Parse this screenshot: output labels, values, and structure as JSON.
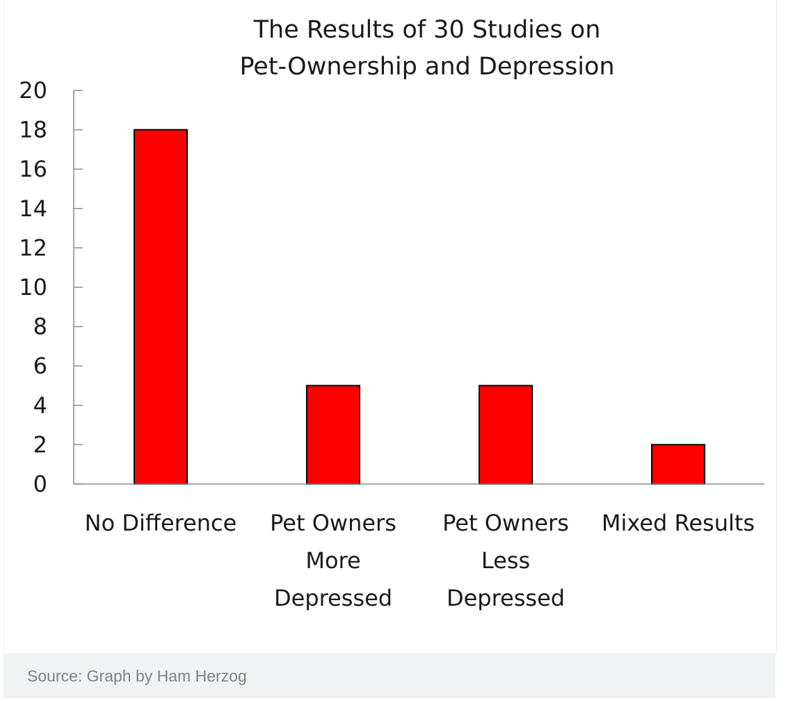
{
  "chart_data": {
    "type": "bar",
    "title": [
      "The Results of 30 Studies on",
      "Pet-Ownership and Depression"
    ],
    "categories": [
      [
        "No Difference"
      ],
      [
        "Pet Owners",
        "More",
        "Depressed"
      ],
      [
        "Pet Owners",
        "Less",
        "Depressed"
      ],
      [
        "Mixed Results"
      ]
    ],
    "values": [
      18,
      5,
      5,
      2
    ],
    "ylim": [
      0,
      20
    ],
    "yticks": [
      "0",
      "2",
      "4",
      "6",
      "8",
      "10",
      "12",
      "14",
      "16",
      "18",
      "20"
    ],
    "xlabel": "",
    "ylabel": "",
    "grid": false,
    "legend": false,
    "bar_color": "#ff0000",
    "bar_edge_color": "#000000"
  },
  "caption": "Source: Graph by Ham Herzog"
}
